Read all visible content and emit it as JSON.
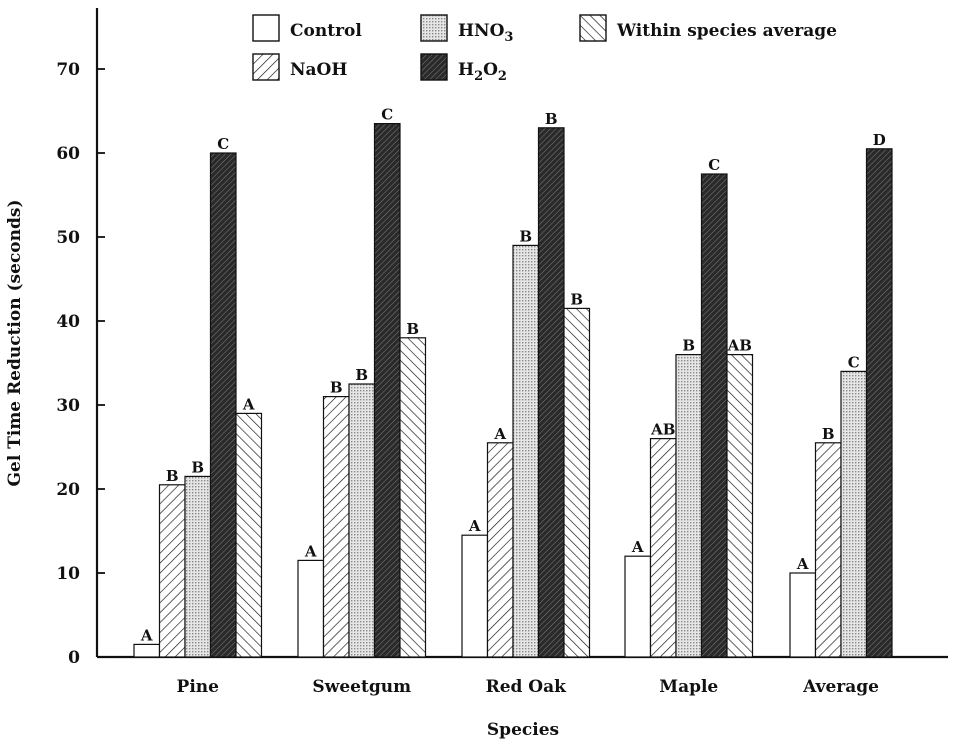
{
  "chart_data": {
    "type": "bar",
    "xlabel": "Species",
    "ylabel": "Gel Time Reduction (seconds)",
    "ylim": [
      0,
      75
    ],
    "yticks": [
      "0",
      "10",
      "20",
      "30",
      "40",
      "50",
      "60",
      "70"
    ],
    "categories": [
      "Pine",
      "Sweetgum",
      "Red Oak",
      "Maple",
      "Average"
    ],
    "legend_placement": "top",
    "series": [
      {
        "name": "Control",
        "pattern": "white",
        "values": [
          1.5,
          11.5,
          14.5,
          12,
          10
        ],
        "letters": [
          "A",
          "A",
          "A",
          "A",
          "A"
        ]
      },
      {
        "name": "NaOH",
        "pattern": "backslash-hatch",
        "values": [
          20.5,
          31,
          25.5,
          26,
          25.5
        ],
        "letters": [
          "B",
          "B",
          "A",
          "AB",
          "B"
        ]
      },
      {
        "name": "HNO",
        "name_sub": "3",
        "pattern": "dots",
        "values": [
          21.5,
          32.5,
          49,
          36,
          34
        ],
        "letters": [
          "B",
          "B",
          "B",
          "B",
          "C"
        ]
      },
      {
        "name": "H",
        "name_sub": "2",
        "name_mid": "O",
        "name_sub2": "2",
        "pattern": "dense-dark-hatch",
        "values": [
          60,
          63.5,
          63,
          57.5,
          60.5
        ],
        "letters": [
          "C",
          "C",
          "B",
          "C",
          "D"
        ]
      },
      {
        "name": "Within species average",
        "pattern": "slash-hatch",
        "values": [
          29,
          38,
          41.5,
          36,
          null
        ],
        "letters": [
          "A",
          "B",
          "B",
          "AB",
          null
        ]
      }
    ],
    "colors": {
      "ink": "#111111",
      "dots": "#b8b8b8",
      "hatch_dark": "#222222"
    }
  }
}
